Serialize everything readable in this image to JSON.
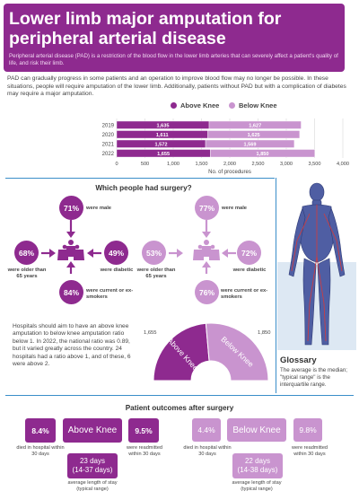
{
  "header": {
    "title": "Lower limb major amputation for peripheral arterial disease",
    "subtitle": "Peripheral arterial disease (PAD) is a restriction of the blood flow in the lower limb arteries that can severely affect a patient's quality of life, and risk their limb."
  },
  "intro": {
    "p1": "PAD can gradually progress in some patients and an operation to improve blood flow may no longer be possible. In these situations, people will require amputation of the lower limb. Additionally, patients without PAD but with a complication of diabetes may require a major amputation."
  },
  "colors": {
    "above_knee": "#8e2a8f",
    "below_knee": "#c994cf",
    "divider": "#3a8ec9"
  },
  "chart_data": {
    "type": "bar",
    "orientation": "horizontal",
    "stacked": true,
    "categories": [
      "2019",
      "2020",
      "2021",
      "2022"
    ],
    "series": [
      {
        "name": "Above Knee",
        "values": [
          1635,
          1611,
          1572,
          1655
        ],
        "labels": [
          "1,635",
          "1,611",
          "1,572",
          "1,655"
        ]
      },
      {
        "name": "Below Knee",
        "values": [
          1627,
          1625,
          1569,
          1850
        ],
        "labels": [
          "1,627",
          "1,625",
          "1,569",
          "1,850"
        ]
      }
    ],
    "xlabel": "No. of procedures",
    "xlim": [
      0,
      4000
    ],
    "xticks": [
      "0",
      "500",
      "1,000",
      "1,500",
      "2,000",
      "2,500",
      "3,000",
      "3,500",
      "4,000"
    ],
    "grid": true,
    "legend": "top"
  },
  "who": {
    "title": "Which people had surgery?",
    "above_knee": {
      "male": "71%",
      "male_label": "were male",
      "older": "68%",
      "older_label": "were older than 65 years",
      "diabetic": "49%",
      "diabetic_label": "were diabetic",
      "smokers": "84%",
      "smokers_label": "were current or ex-smokers"
    },
    "below_knee": {
      "male": "77%",
      "male_label": "were male",
      "older": "53%",
      "older_label": "were older than 65 years",
      "diabetic": "72%",
      "diabetic_label": "were diabetic",
      "smokers": "76%",
      "smokers_label": "were current or ex-smokers"
    }
  },
  "ratio": {
    "text": "Hospitals should aim to have an above knee amputation to below knee amputation ratio below 1. In 2022, the national ratio was 0.89, but it varied greatly across the country. 24 hospitals had a ratio above 1, and of these, 6 were above 2.",
    "above_value": "1,655",
    "below_value": "1,850",
    "above_label": "Above Knee",
    "below_label": "Below Knee",
    "above_count": 1655,
    "below_count": 1850
  },
  "glossary": {
    "title": "Glossary",
    "text": "The average is the median; \"typical range\" is the interquartile range."
  },
  "outcomes": {
    "title": "Patient outcomes after surgery",
    "above_knee": {
      "label": "Above Knee",
      "died": "8.4%",
      "died_label": "died in hospital within 30 days",
      "readmitted": "9.5%",
      "readmitted_label": "were readmitted within 30 days",
      "stay": "23 days",
      "stay_range": "(14-37 days)",
      "stay_label": "average length of stay (typical range)"
    },
    "below_knee": {
      "label": "Below Knee",
      "died": "4.4%",
      "died_label": "died in hospital within 30 days",
      "readmitted": "9.8%",
      "readmitted_label": "were readmitted within 30 days",
      "stay": "22 days",
      "stay_range": "(14-38 days)",
      "stay_label": "average length of stay (typical range)"
    }
  }
}
